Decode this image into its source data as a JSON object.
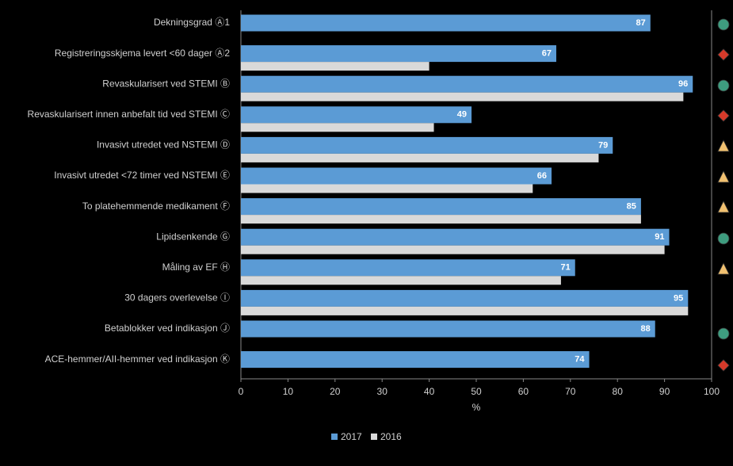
{
  "chart_data": {
    "type": "bar",
    "orientation": "horizontal",
    "categories": [
      "Dekningsgrad Ⓐ1",
      "Registreringsskjema levert <60 dager Ⓐ2",
      "Revaskularisert ved STEMI Ⓑ",
      "Revaskularisert innen anbefalt tid ved STEMI Ⓒ",
      "Invasivt utredet ved NSTEMI Ⓓ",
      "Invasivt utredet <72 timer ved NSTEMI Ⓔ",
      "To platehemmende medikament Ⓕ",
      "Lipidsenkende Ⓖ",
      "Måling av EF Ⓗ",
      "30 dagers overlevelse Ⓘ",
      "Betablokker ved indikasjon Ⓙ",
      "ACE-hemmer/AII-hemmer ved indikasjon Ⓚ"
    ],
    "series": [
      {
        "name": "2017",
        "color": "#5b9bd5",
        "values": [
          87,
          67,
          96,
          49,
          79,
          66,
          85,
          91,
          71,
          95,
          88,
          74
        ]
      },
      {
        "name": "2016",
        "color": "#d9d9d9",
        "values": [
          null,
          40,
          94,
          41,
          76,
          62,
          85,
          90,
          68,
          95,
          null,
          null
        ]
      }
    ],
    "xlabel": "%",
    "xlim": [
      0,
      100
    ],
    "xticks": [
      0,
      10,
      20,
      30,
      40,
      50,
      60,
      70,
      80,
      90,
      100
    ],
    "grid": false,
    "legend": "bottom"
  }
}
